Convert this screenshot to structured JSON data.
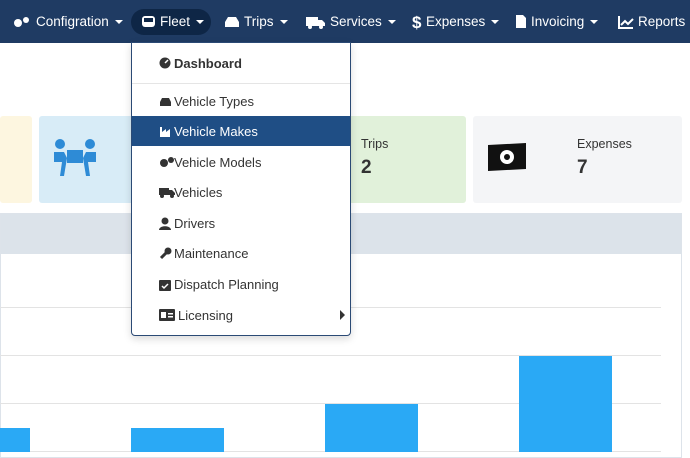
{
  "nav": [
    "Configration",
    "Fleet",
    "Trips",
    "Services",
    "Expenses",
    "Invoicing",
    "Reports"
  ],
  "dropdown": [
    "Dashboard",
    "Vehicle Types",
    "Vehicle Makes",
    "Vehicle Models",
    "Vehicles",
    "Drivers",
    "Maintenance",
    "Dispatch Planning",
    "Licensing"
  ],
  "cards": [
    {
      "label": "Trips",
      "value": 2
    },
    {
      "label": "Expenses",
      "value": 7
    }
  ]
}
